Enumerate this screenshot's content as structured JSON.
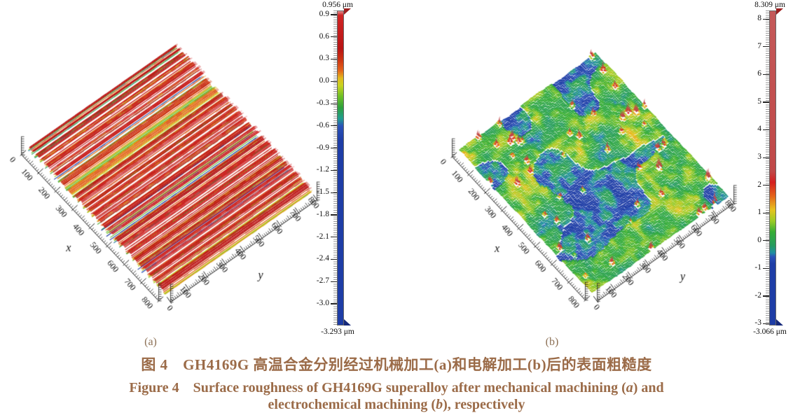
{
  "figure": {
    "panel_a_label": "(a)",
    "panel_b_label": "(b)",
    "caption_zh": "图 4　GH4169G 高温合金分别经过机械加工(a)和电解加工(b)后的表面粗糙度",
    "caption_en_1_pre": "Figure 4　Surface roughness of GH4169G superalloy after mechanical machining (",
    "caption_en_1_italic": "a",
    "caption_en_1_post": ") and",
    "caption_en_2_pre": "electrochemical machining (",
    "caption_en_2_italic": "b",
    "caption_en_2_post": "), respectively",
    "caption_color": "#9b6b48"
  },
  "chart_data": [
    {
      "type": "heatmap",
      "subtype": "3d_surface_topography",
      "panel": "a",
      "description": "Mechanically machined GH4169G surface: straight parallel tool-mark ridges running along y; crests red/orange, flanks yellow, valleys green with occasional deep blue grooves",
      "surface_style": "parallel_ridges_along_y",
      "xlabel": "x",
      "ylabel": "y",
      "x_range": [
        0,
        800
      ],
      "y_range": [
        0,
        800
      ],
      "x_tick_labels": [
        "0",
        "100",
        "200",
        "300",
        "400",
        "500",
        "600",
        "700",
        "800"
      ],
      "y_tick_labels": [
        "0",
        "100",
        "200",
        "300",
        "400",
        "500",
        "600",
        "700",
        "800"
      ],
      "z_unit": "μm",
      "z_max": 0.956,
      "z_min": -3.293,
      "z_max_label": "0.956 μm",
      "z_min_label": "-3.293 μm",
      "ridge_height_range_um": [
        -1.2,
        0.95
      ],
      "colorbar_tick_labels": [
        "0.9",
        "0.6",
        "0.3",
        "0.0",
        "-0.3",
        "-0.6",
        "-0.9",
        "-1.2",
        "-1.5",
        "-1.8",
        "-2.1",
        "-2.4",
        "-2.7",
        "-3.0"
      ],
      "colorbar_tick_values": [
        0.9,
        0.6,
        0.3,
        0.0,
        -0.3,
        -0.6,
        -0.9,
        -1.2,
        -1.5,
        -1.8,
        -2.1,
        -2.4,
        -2.7,
        -3.0
      ],
      "palette": [
        [
          0.956,
          "#e08a8a"
        ],
        [
          0.9,
          "#d02525"
        ],
        [
          0.45,
          "#b81414"
        ],
        [
          0.3,
          "#cc3312"
        ],
        [
          0.15,
          "#e4651a"
        ],
        [
          0.05,
          "#e2b91e"
        ],
        [
          -0.05,
          "#c8d31f"
        ],
        [
          -0.2,
          "#6dbf26"
        ],
        [
          -0.35,
          "#2ea03c"
        ],
        [
          -0.5,
          "#1f9d8f"
        ],
        [
          -0.6,
          "#2a52b8"
        ],
        [
          -0.8,
          "#1e3da6"
        ],
        [
          -3.293,
          "#1e3da6"
        ]
      ]
    },
    {
      "type": "heatmap",
      "subtype": "3d_surface_topography",
      "panel": "b",
      "description": "Electrochemically machined GH4169G surface: mottled green texture with scattered blue pits and sparse sharp red spikes, tallest near the far right corner",
      "surface_style": "mottled_with_spikes",
      "xlabel": "x",
      "ylabel": "y",
      "x_range": [
        0,
        800
      ],
      "y_range": [
        0,
        800
      ],
      "x_tick_labels": [
        "0",
        "100",
        "200",
        "300",
        "400",
        "500",
        "600",
        "700",
        "800"
      ],
      "y_tick_labels": [
        "0",
        "100",
        "200",
        "300",
        "400",
        "500",
        "600",
        "700",
        "800"
      ],
      "z_unit": "μm",
      "z_max": 8.309,
      "z_min": -3.066,
      "z_max_label": "8.309 μm",
      "z_min_label": "-3.066 μm",
      "ridge_height_range_um": [
        -1.1,
        7.0
      ],
      "colorbar_tick_labels": [
        "8",
        "7",
        "6",
        "5",
        "4",
        "3",
        "2",
        "1",
        "0",
        "-1",
        "-2",
        "-3"
      ],
      "colorbar_tick_values": [
        8,
        7,
        6,
        5,
        4,
        3,
        2,
        1,
        0,
        -1,
        -2,
        -3
      ],
      "palette": [
        [
          8.309,
          "#c45959"
        ],
        [
          2.5,
          "#c04848"
        ],
        [
          2.1,
          "#d41f1f"
        ],
        [
          1.6,
          "#e4641a"
        ],
        [
          1.1,
          "#e6c31e"
        ],
        [
          0.7,
          "#9ccb24"
        ],
        [
          0.3,
          "#35ad35"
        ],
        [
          -0.2,
          "#259b60"
        ],
        [
          -0.45,
          "#1f8fa0"
        ],
        [
          -0.6,
          "#2a52b8"
        ],
        [
          -0.85,
          "#1e3da6"
        ],
        [
          -3.066,
          "#1e3da6"
        ]
      ]
    }
  ]
}
